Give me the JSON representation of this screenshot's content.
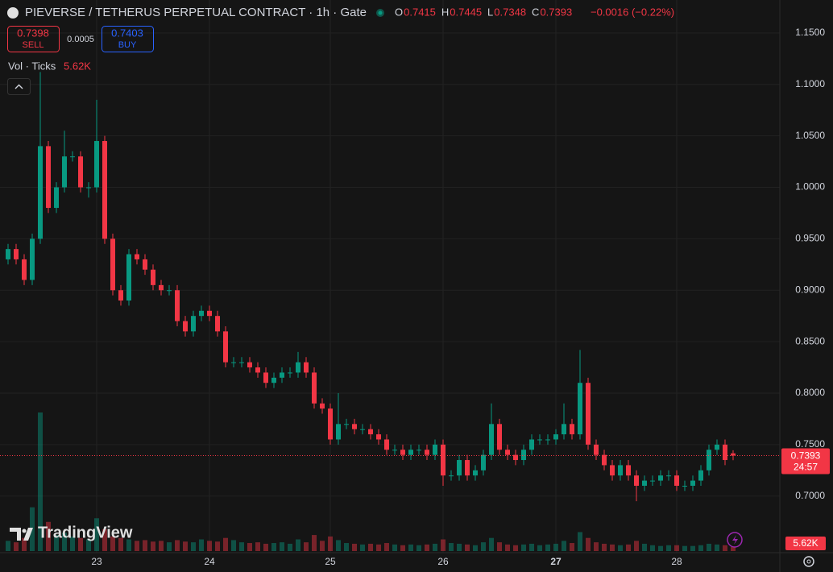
{
  "chart_data": {
    "type": "candlestick",
    "title": "PIEVERSE / TETHERUS PERPETUAL CONTRACT · 1h · Gate",
    "ohlc_letters": [
      "O",
      "H",
      "L",
      "C"
    ],
    "change": "−0.0016 (−0.22%)",
    "sell": {
      "price": "0.7398",
      "label": "SELL"
    },
    "spread": "0.0005",
    "buy": {
      "price": "0.7403",
      "label": "BUY"
    },
    "volume_title": "Vol · Ticks",
    "volume_label": "5.62K",
    "countdown": "24:57",
    "brand": "TradingView",
    "up_color": "#089981",
    "down_color": "#f23645",
    "categories": [
      null,
      null,
      null,
      null,
      null,
      null,
      null,
      null,
      null,
      null,
      null,
      "23",
      null,
      null,
      null,
      null,
      null,
      null,
      null,
      null,
      null,
      null,
      null,
      null,
      null,
      "24",
      null,
      null,
      null,
      null,
      null,
      null,
      null,
      null,
      null,
      null,
      null,
      null,
      null,
      null,
      "25",
      null,
      null,
      null,
      null,
      null,
      null,
      null,
      null,
      null,
      null,
      null,
      null,
      null,
      "26",
      null,
      null,
      null,
      null,
      null,
      null,
      null,
      null,
      null,
      null,
      null,
      null,
      null,
      "27",
      null,
      null,
      null,
      null,
      null,
      null,
      null,
      null,
      null,
      null,
      null,
      null,
      null,
      null,
      "28",
      null,
      null,
      null,
      null,
      null,
      null,
      null
    ],
    "open": [
      0.93,
      0.94,
      0.93,
      0.91,
      0.95,
      1.04,
      0.98,
      1.0,
      1.03,
      1.03,
      1.0,
      1.0,
      1.045,
      0.95,
      0.9,
      0.89,
      0.935,
      0.93,
      0.92,
      0.905,
      0.9,
      0.9,
      0.87,
      0.86,
      0.875,
      0.88,
      0.875,
      0.86,
      0.83,
      0.83,
      0.83,
      0.825,
      0.82,
      0.81,
      0.815,
      0.82,
      0.82,
      0.83,
      0.82,
      0.79,
      0.785,
      0.755,
      0.77,
      0.77,
      0.765,
      0.765,
      0.76,
      0.755,
      0.745,
      0.745,
      0.74,
      0.745,
      0.745,
      0.74,
      0.75,
      0.72,
      0.72,
      0.735,
      0.72,
      0.725,
      0.74,
      0.77,
      0.745,
      0.74,
      0.735,
      0.745,
      0.755,
      0.755,
      0.755,
      0.76,
      0.77,
      0.76,
      0.81,
      0.75,
      0.74,
      0.73,
      0.72,
      0.73,
      0.72,
      0.71,
      0.715,
      0.715,
      0.72,
      0.72,
      0.71,
      0.71,
      0.715,
      0.725,
      0.745,
      0.75,
      0.7415
    ],
    "high": [
      0.945,
      0.945,
      0.935,
      0.955,
      1.112,
      1.045,
      1.005,
      1.055,
      1.035,
      1.035,
      1.005,
      1.085,
      1.05,
      0.955,
      0.905,
      0.94,
      0.94,
      0.935,
      0.925,
      0.91,
      0.905,
      0.905,
      0.875,
      0.88,
      0.885,
      0.885,
      0.88,
      0.865,
      0.835,
      0.835,
      0.835,
      0.83,
      0.825,
      0.82,
      0.825,
      0.825,
      0.84,
      0.835,
      0.825,
      0.795,
      0.79,
      0.8,
      0.775,
      0.775,
      0.77,
      0.77,
      0.765,
      0.76,
      0.75,
      0.75,
      0.75,
      0.75,
      0.75,
      0.755,
      0.755,
      0.725,
      0.74,
      0.74,
      0.73,
      0.745,
      0.79,
      0.775,
      0.75,
      0.745,
      0.75,
      0.76,
      0.76,
      0.76,
      0.765,
      0.79,
      0.775,
      0.842,
      0.815,
      0.755,
      0.745,
      0.735,
      0.735,
      0.735,
      0.725,
      0.72,
      0.72,
      0.725,
      0.725,
      0.725,
      0.715,
      0.72,
      0.73,
      0.75,
      0.755,
      0.755,
      0.7445
    ],
    "low": [
      0.925,
      0.925,
      0.905,
      0.905,
      0.945,
      0.975,
      0.975,
      0.995,
      1.025,
      0.995,
      0.99,
      0.995,
      0.945,
      0.895,
      0.885,
      0.885,
      0.925,
      0.915,
      0.9,
      0.895,
      0.895,
      0.865,
      0.855,
      0.855,
      0.87,
      0.87,
      0.855,
      0.825,
      0.825,
      0.825,
      0.82,
      0.815,
      0.805,
      0.805,
      0.81,
      0.815,
      0.815,
      0.815,
      0.785,
      0.78,
      0.75,
      0.75,
      0.765,
      0.76,
      0.76,
      0.755,
      0.75,
      0.74,
      0.74,
      0.735,
      0.735,
      0.74,
      0.735,
      0.735,
      0.71,
      0.715,
      0.715,
      0.715,
      0.715,
      0.72,
      0.735,
      0.74,
      0.735,
      0.73,
      0.73,
      0.74,
      0.75,
      0.75,
      0.75,
      0.755,
      0.755,
      0.755,
      0.745,
      0.735,
      0.725,
      0.715,
      0.715,
      0.715,
      0.695,
      0.705,
      0.71,
      0.71,
      0.715,
      0.705,
      0.705,
      0.705,
      0.71,
      0.72,
      0.74,
      0.73,
      0.7348
    ],
    "close": [
      0.94,
      0.93,
      0.91,
      0.95,
      1.04,
      0.98,
      1.0,
      1.03,
      1.03,
      1.0,
      1.0,
      1.045,
      0.95,
      0.9,
      0.89,
      0.935,
      0.93,
      0.92,
      0.905,
      0.9,
      0.9,
      0.87,
      0.86,
      0.875,
      0.88,
      0.875,
      0.86,
      0.83,
      0.83,
      0.83,
      0.825,
      0.82,
      0.81,
      0.815,
      0.82,
      0.82,
      0.83,
      0.82,
      0.79,
      0.785,
      0.755,
      0.77,
      0.77,
      0.765,
      0.765,
      0.76,
      0.755,
      0.745,
      0.745,
      0.74,
      0.745,
      0.745,
      0.74,
      0.75,
      0.72,
      0.72,
      0.735,
      0.72,
      0.725,
      0.74,
      0.77,
      0.745,
      0.74,
      0.735,
      0.745,
      0.755,
      0.755,
      0.755,
      0.76,
      0.77,
      0.76,
      0.81,
      0.75,
      0.74,
      0.73,
      0.72,
      0.73,
      0.72,
      0.71,
      0.715,
      0.715,
      0.72,
      0.72,
      0.71,
      0.71,
      0.715,
      0.725,
      0.745,
      0.75,
      0.735,
      0.7393
    ],
    "volume": [
      14000,
      12000,
      18000,
      60000,
      190000,
      40000,
      22000,
      25000,
      20000,
      18000,
      16000,
      45000,
      30000,
      20000,
      18000,
      16000,
      14000,
      15000,
      13000,
      14000,
      12000,
      15000,
      13000,
      12000,
      16000,
      14000,
      13000,
      18000,
      15000,
      12000,
      11000,
      12000,
      10000,
      11000,
      12000,
      10000,
      16000,
      12000,
      22000,
      14000,
      20000,
      15000,
      11000,
      10000,
      9000,
      10000,
      9000,
      11000,
      9000,
      8000,
      9000,
      8000,
      9000,
      10000,
      16000,
      11000,
      10000,
      9000,
      8000,
      12000,
      18000,
      12000,
      9000,
      8000,
      9000,
      10000,
      8000,
      9000,
      10000,
      14000,
      11000,
      26000,
      18000,
      12000,
      10000,
      9000,
      8000,
      9000,
      14000,
      10000,
      8000,
      7000,
      8000,
      8000,
      7000,
      7000,
      8000,
      10000,
      9000,
      8000,
      5620
    ],
    "ylim": [
      0.645,
      1.182
    ],
    "yticks": [
      {
        "value": 0.7,
        "label": "0.7000"
      },
      {
        "value": 0.75,
        "label": "0.7500"
      },
      {
        "value": 0.8,
        "label": "0.8000"
      },
      {
        "value": 0.85,
        "label": "0.8500"
      },
      {
        "value": 0.9,
        "label": "0.9000"
      },
      {
        "value": 0.95,
        "label": "0.9500"
      },
      {
        "value": 1.0,
        "label": "1.0000"
      },
      {
        "value": 1.05,
        "label": "1.0500"
      },
      {
        "value": 1.1,
        "label": "1.1000"
      },
      {
        "value": 1.15,
        "label": "1.1500"
      }
    ],
    "grid": true
  }
}
